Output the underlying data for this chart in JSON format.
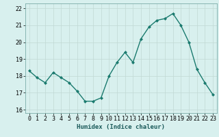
{
  "x": [
    0,
    1,
    2,
    3,
    4,
    5,
    6,
    7,
    8,
    9,
    10,
    11,
    12,
    13,
    14,
    15,
    16,
    17,
    18,
    19,
    20,
    21,
    22,
    23
  ],
  "y": [
    18.3,
    17.9,
    17.6,
    18.2,
    17.9,
    17.6,
    17.1,
    16.5,
    16.5,
    16.7,
    18.0,
    18.8,
    19.4,
    18.8,
    20.2,
    20.9,
    21.3,
    21.4,
    21.7,
    21.0,
    20.0,
    18.4,
    17.6,
    16.9
  ],
  "line_color": "#1a7a6e",
  "marker": "D",
  "marker_size": 2.0,
  "bg_color": "#d8f0ee",
  "grid_color": "#c0d8d4",
  "xlabel": "Humidex (Indice chaleur)",
  "xlim": [
    -0.5,
    23.5
  ],
  "ylim": [
    15.8,
    22.3
  ],
  "yticks": [
    16,
    17,
    18,
    19,
    20,
    21,
    22
  ],
  "xticks": [
    0,
    1,
    2,
    3,
    4,
    5,
    6,
    7,
    8,
    9,
    10,
    11,
    12,
    13,
    14,
    15,
    16,
    17,
    18,
    19,
    20,
    21,
    22,
    23
  ],
  "xlabel_fontsize": 6.5,
  "tick_fontsize": 6.0,
  "line_width": 1.0
}
